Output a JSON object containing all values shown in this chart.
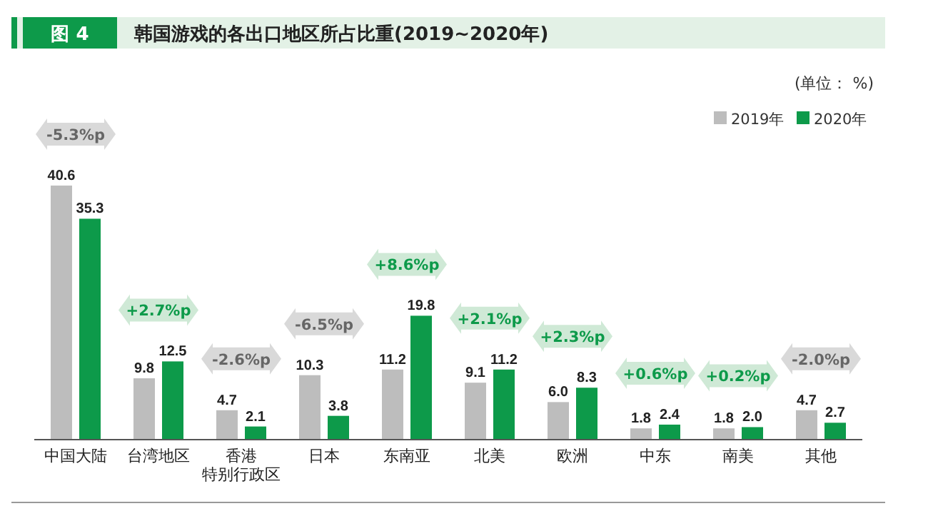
{
  "chart_data": {
    "type": "bar",
    "title": "图 4",
    "subtitle": "韩国游戏的各出口地区所占比重(2019~2020年)",
    "categories": [
      "中国大陆",
      "台湾地区",
      "香港特别行政区",
      "日本",
      "东南亚",
      "北美",
      "欧洲",
      "中东",
      "南美",
      "其他"
    ],
    "series": [
      {
        "name": "2019年",
        "color": "#bdbdbd",
        "values": [
          40.6,
          9.8,
          4.7,
          10.3,
          11.2,
          9.1,
          6.0,
          1.8,
          1.8,
          4.7
        ],
        "value_labels": [
          "40.6",
          "9.8",
          "4.7",
          "10.3",
          "11.2",
          "9.1",
          "6.0",
          "1.8",
          "1.8",
          "4.7"
        ]
      },
      {
        "name": "2020年",
        "color": "#0d9a4a",
        "values": [
          35.3,
          12.5,
          2.1,
          3.8,
          19.8,
          11.2,
          8.3,
          2.4,
          2.0,
          2.7
        ],
        "value_labels": [
          "35.3",
          "12.5",
          "2.1",
          "3.8",
          "19.8",
          "11.2",
          "8.3",
          "2.4",
          "2.0",
          "2.7"
        ]
      }
    ],
    "legend": "top right",
    "annotations": [
      "-5.3%p",
      "+2.7%p",
      "-2.6%p",
      "-6.5%p",
      "+8.6%p",
      "+2.1%p",
      "+2.3%p",
      "+0.6%p",
      "+0.2%p",
      "-2.0%p",
      "(单位： %)"
    ]
  }
}
